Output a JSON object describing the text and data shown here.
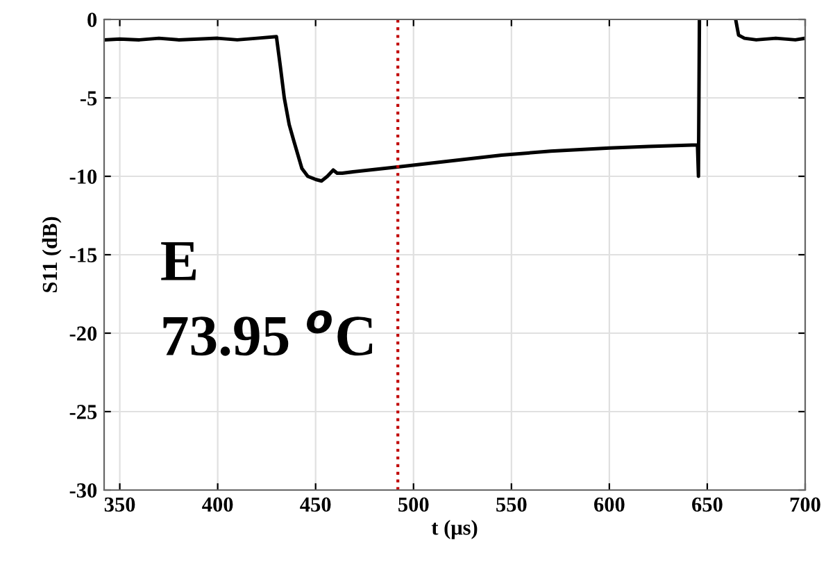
{
  "chart_data": {
    "type": "line",
    "xlabel": "t (μs)",
    "ylabel": "S11 (dB)",
    "series": [
      {
        "color": "#000000",
        "x": [
          342,
          350,
          360,
          370,
          380,
          390,
          400,
          410,
          420,
          430,
          432,
          434,
          436.5,
          439,
          443,
          446,
          450,
          453,
          456,
          459,
          461,
          463.6,
          470,
          492,
          520,
          545,
          570,
          600,
          620,
          645,
          645.5,
          646,
          646.5,
          664.5,
          666,
          669,
          675,
          685,
          695,
          700
        ],
        "values": [
          -1.3,
          -1.25,
          -1.3,
          -1.2,
          -1.3,
          -1.25,
          -1.2,
          -1.3,
          -1.2,
          -1.1,
          -3,
          -5,
          -6.7,
          -7.8,
          -9.5,
          -10,
          -10.2,
          -10.3,
          -10,
          -9.6,
          -9.8,
          -9.8,
          -9.7,
          -9.4,
          -9.0,
          -8.65,
          -8.4,
          -8.2,
          -8.1,
          -8.0,
          -10,
          0,
          null,
          0,
          -1.0,
          -1.2,
          -1.3,
          -1.2,
          -1.3,
          -1.2
        ]
      }
    ],
    "xlim": [
      342,
      700
    ],
    "xticks": [
      350,
      400,
      450,
      500,
      550,
      600,
      650,
      700
    ],
    "ylim": [
      -30,
      0
    ],
    "yticks": [
      -30,
      -25,
      -20,
      -15,
      -10,
      -5,
      0
    ],
    "grid": true,
    "line_style": "solid",
    "marker": "none",
    "ref_lines": [
      {
        "axis": "x",
        "value": 492,
        "color": "#c00000",
        "line_style": "dotted"
      }
    ],
    "annotations": [
      "E",
      "73.95 $^{o}$C"
    ]
  }
}
